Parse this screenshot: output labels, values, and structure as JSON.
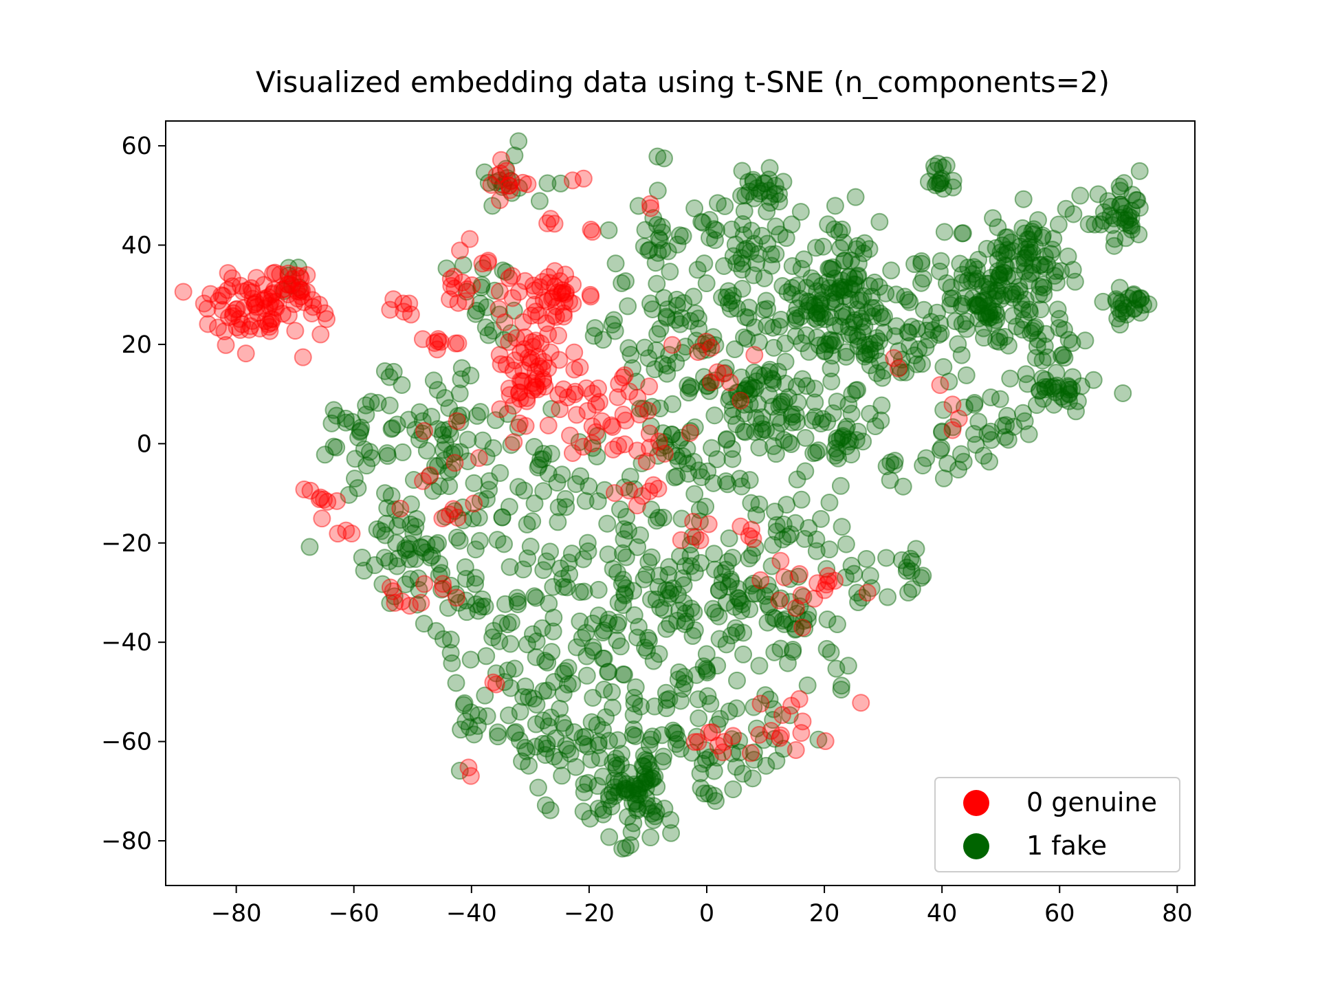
{
  "chart_data": {
    "type": "scatter",
    "title": "Visualized embedding data using t-SNE (n_components=2)",
    "xlabel": "",
    "ylabel": "",
    "xlim": [
      -92,
      83
    ],
    "ylim": [
      -89,
      65
    ],
    "xticks": [
      -80,
      -60,
      -40,
      -20,
      0,
      20,
      40,
      60,
      80
    ],
    "yticks": [
      60,
      40,
      20,
      0,
      -20,
      -40,
      -60,
      -80
    ],
    "xtick_labels": [
      "−80",
      "−60",
      "−40",
      "−20",
      "0",
      "20",
      "40",
      "60",
      "80"
    ],
    "ytick_labels": [
      "60",
      "40",
      "20",
      "0",
      "−20",
      "−40",
      "−60",
      "−80"
    ],
    "grid": false,
    "legend_position": "lower-right",
    "marker_alpha": 0.3,
    "colors": {
      "genuine": "#ff0000",
      "fake": "#006400"
    },
    "series": [
      {
        "name": "0 genuine",
        "color": "#ff0000",
        "clusters": [
          {
            "center": [
              -77,
              27
            ],
            "spread": [
              4,
              3
            ],
            "count": 70
          },
          {
            "center": [
              -70,
              31
            ],
            "spread": [
              2,
              2
            ],
            "count": 18
          },
          {
            "center": [
              -67,
              27
            ],
            "spread": [
              2,
              4
            ],
            "count": 10
          },
          {
            "center": [
              -34,
              52
            ],
            "spread": [
              2,
              2
            ],
            "count": 12
          },
          {
            "center": [
              -40,
              34
            ],
            "spread": [
              4,
              3
            ],
            "count": 18
          },
          {
            "center": [
              -26,
              30
            ],
            "spread": [
              3,
              3
            ],
            "count": 40
          },
          {
            "center": [
              -31,
              15
            ],
            "spread": [
              3,
              4
            ],
            "count": 50
          },
          {
            "center": [
              -46,
              20
            ],
            "spread": [
              2,
              1
            ],
            "count": 8
          },
          {
            "center": [
              -20,
              8
            ],
            "spread": [
              5,
              6
            ],
            "count": 35
          },
          {
            "center": [
              -11,
              8
            ],
            "spread": [
              3,
              5
            ],
            "count": 15
          },
          {
            "center": [
              -52,
              28
            ],
            "spread": [
              1.5,
              1
            ],
            "count": 6
          },
          {
            "center": [
              -66,
              -11
            ],
            "spread": [
              1.5,
              2
            ],
            "count": 8
          },
          {
            "center": [
              -63,
              -18
            ],
            "spread": [
              1,
              1
            ],
            "count": 3
          },
          {
            "center": [
              -50,
              -30
            ],
            "spread": [
              3,
              4
            ],
            "count": 10
          },
          {
            "center": [
              -45,
              -5
            ],
            "spread": [
              4,
              6
            ],
            "count": 12
          },
          {
            "center": [
              -12,
              -8
            ],
            "spread": [
              3,
              3
            ],
            "count": 8
          },
          {
            "center": [
              0,
              -60
            ],
            "spread": [
              3,
              2
            ],
            "count": 8
          },
          {
            "center": [
              13,
              -57
            ],
            "spread": [
              4,
              4
            ],
            "count": 14
          },
          {
            "center": [
              17,
              -30
            ],
            "spread": [
              4,
              4
            ],
            "count": 16
          },
          {
            "center": [
              0,
              15
            ],
            "spread": [
              4,
              5
            ],
            "count": 10
          },
          {
            "center": [
              -3,
              -18
            ],
            "spread": [
              2,
              2
            ],
            "count": 5
          },
          {
            "center": [
              6,
              -18
            ],
            "spread": [
              1.5,
              1.5
            ],
            "count": 4
          },
          {
            "center": [
              -27,
              45
            ],
            "spread": [
              1,
              1
            ],
            "count": 3
          },
          {
            "center": [
              -22,
              53
            ],
            "spread": [
              1,
              1
            ],
            "count": 2
          },
          {
            "center": [
              -36,
              -47
            ],
            "spread": [
              1,
              1
            ],
            "count": 2
          },
          {
            "center": [
              -40,
              -66
            ],
            "spread": [
              1,
              1
            ],
            "count": 2
          },
          {
            "center": [
              32,
              15
            ],
            "spread": [
              1,
              1
            ],
            "count": 2
          },
          {
            "center": [
              41,
              5
            ],
            "spread": [
              2,
              3
            ],
            "count": 4
          },
          {
            "center": [
              -10,
              48
            ],
            "spread": [
              1,
              1
            ],
            "count": 2
          },
          {
            "center": [
              -19,
              42
            ],
            "spread": [
              1,
              1
            ],
            "count": 2
          }
        ]
      },
      {
        "name": "1 fake",
        "color": "#006400",
        "clusters": [
          {
            "center": [
              -70,
              33
            ],
            "spread": [
              1.5,
              1.5
            ],
            "count": 6
          },
          {
            "center": [
              -35,
              52
            ],
            "spread": [
              3,
              3
            ],
            "count": 15
          },
          {
            "center": [
              -37,
              28
            ],
            "spread": [
              4,
              5
            ],
            "count": 20
          },
          {
            "center": [
              -60,
              -2
            ],
            "spread": [
              3,
              5
            ],
            "count": 15
          },
          {
            "center": [
              -45,
              0
            ],
            "spread": [
              7,
              6
            ],
            "count": 70
          },
          {
            "center": [
              -48,
              -20
            ],
            "spread": [
              6,
              6
            ],
            "count": 60
          },
          {
            "center": [
              -38,
              -35
            ],
            "spread": [
              5,
              8
            ],
            "count": 40
          },
          {
            "center": [
              -25,
              -12
            ],
            "spread": [
              7,
              8
            ],
            "count": 50
          },
          {
            "center": [
              -22,
              -38
            ],
            "spread": [
              7,
              8
            ],
            "count": 70
          },
          {
            "center": [
              -27,
              -58
            ],
            "spread": [
              6,
              6
            ],
            "count": 55
          },
          {
            "center": [
              -14,
              -68
            ],
            "spread": [
              5,
              5
            ],
            "count": 80
          },
          {
            "center": [
              -5,
              -52
            ],
            "spread": [
              6,
              7
            ],
            "count": 50
          },
          {
            "center": [
              -5,
              -28
            ],
            "spread": [
              6,
              7
            ],
            "count": 60
          },
          {
            "center": [
              5,
              -33
            ],
            "spread": [
              5,
              5
            ],
            "count": 40
          },
          {
            "center": [
              -3,
              -6
            ],
            "spread": [
              5,
              5
            ],
            "count": 40
          },
          {
            "center": [
              -3,
              15
            ],
            "spread": [
              7,
              7
            ],
            "count": 55
          },
          {
            "center": [
              -8,
              42
            ],
            "spread": [
              4,
              4
            ],
            "count": 25
          },
          {
            "center": [
              8,
              38
            ],
            "spread": [
              5,
              5
            ],
            "count": 45
          },
          {
            "center": [
              9,
              52
            ],
            "spread": [
              3,
              2
            ],
            "count": 25
          },
          {
            "center": [
              10,
              8
            ],
            "spread": [
              5,
              5
            ],
            "count": 60
          },
          {
            "center": [
              18,
              28
            ],
            "spread": [
              5,
              5
            ],
            "count": 70
          },
          {
            "center": [
              24,
              36
            ],
            "spread": [
              4,
              5
            ],
            "count": 40
          },
          {
            "center": [
              27,
              20
            ],
            "spread": [
              4,
              4
            ],
            "count": 50
          },
          {
            "center": [
              22,
              2
            ],
            "spread": [
              5,
              5
            ],
            "count": 50
          },
          {
            "center": [
              33,
              30
            ],
            "spread": [
              4,
              6
            ],
            "count": 30
          },
          {
            "center": [
              40,
              54
            ],
            "spread": [
              1.5,
              1.5
            ],
            "count": 15
          },
          {
            "center": [
              49,
              33
            ],
            "spread": [
              5,
              5
            ],
            "count": 80
          },
          {
            "center": [
              49,
              26
            ],
            "spread": [
              3,
              3
            ],
            "count": 40
          },
          {
            "center": [
              55,
              38
            ],
            "spread": [
              4,
              4
            ],
            "count": 40
          },
          {
            "center": [
              70,
              45
            ],
            "spread": [
              3,
              3
            ],
            "count": 40
          },
          {
            "center": [
              72,
              28
            ],
            "spread": [
              2,
              2
            ],
            "count": 25
          },
          {
            "center": [
              58,
              20
            ],
            "spread": [
              3,
              4
            ],
            "count": 25
          },
          {
            "center": [
              60,
              10
            ],
            "spread": [
              3,
              2
            ],
            "count": 30
          },
          {
            "center": [
              45,
              3
            ],
            "spread": [
              5,
              4
            ],
            "count": 30
          },
          {
            "center": [
              37,
              20
            ],
            "spread": [
              3,
              3
            ],
            "count": 15
          },
          {
            "center": [
              35,
              -26
            ],
            "spread": [
              2,
              2
            ],
            "count": 12
          },
          {
            "center": [
              27,
              -28
            ],
            "spread": [
              2,
              2
            ],
            "count": 10
          },
          {
            "center": [
              16,
              -36
            ],
            "spread": [
              4,
              4
            ],
            "count": 25
          },
          {
            "center": [
              15,
              -18
            ],
            "spread": [
              4,
              4
            ],
            "count": 25
          },
          {
            "center": [
              10,
              -58
            ],
            "spread": [
              4,
              5
            ],
            "count": 20
          },
          {
            "center": [
              0,
              -68
            ],
            "spread": [
              3,
              4
            ],
            "count": 12
          },
          {
            "center": [
              23,
              -45
            ],
            "spread": [
              3,
              3
            ],
            "count": 6
          },
          {
            "center": [
              -2,
              28
            ],
            "spread": [
              4,
              4
            ],
            "count": 20
          },
          {
            "center": [
              -15,
              25
            ],
            "spread": [
              3,
              3
            ],
            "count": 10
          },
          {
            "center": [
              -7,
              58
            ],
            "spread": [
              1,
              1
            ],
            "count": 2
          },
          {
            "center": [
              -27,
              53
            ],
            "spread": [
              1,
              1
            ],
            "count": 2
          },
          {
            "center": [
              -60,
              4
            ],
            "spread": [
              1,
              1.5
            ],
            "count": 4
          },
          {
            "center": [
              -53,
              15
            ],
            "spread": [
              1,
              1
            ],
            "count": 3
          },
          {
            "center": [
              -40,
              14
            ],
            "spread": [
              1,
              1
            ],
            "count": 3
          },
          {
            "center": [
              -15,
              -82
            ],
            "spread": [
              1,
              1
            ],
            "count": 2
          },
          {
            "center": [
              33,
              -6
            ],
            "spread": [
              2,
              3
            ],
            "count": 6
          },
          {
            "center": [
              40,
              -3
            ],
            "spread": [
              2,
              2
            ],
            "count": 6
          },
          {
            "center": [
              -40,
              -55
            ],
            "spread": [
              2,
              2
            ],
            "count": 8
          },
          {
            "center": [
              -10,
              -75
            ],
            "spread": [
              3,
              3
            ],
            "count": 15
          }
        ]
      }
    ]
  },
  "legend": {
    "items": [
      {
        "label": "0 genuine",
        "color": "#ff0000"
      },
      {
        "label": "1 fake",
        "color": "#006400"
      }
    ]
  }
}
